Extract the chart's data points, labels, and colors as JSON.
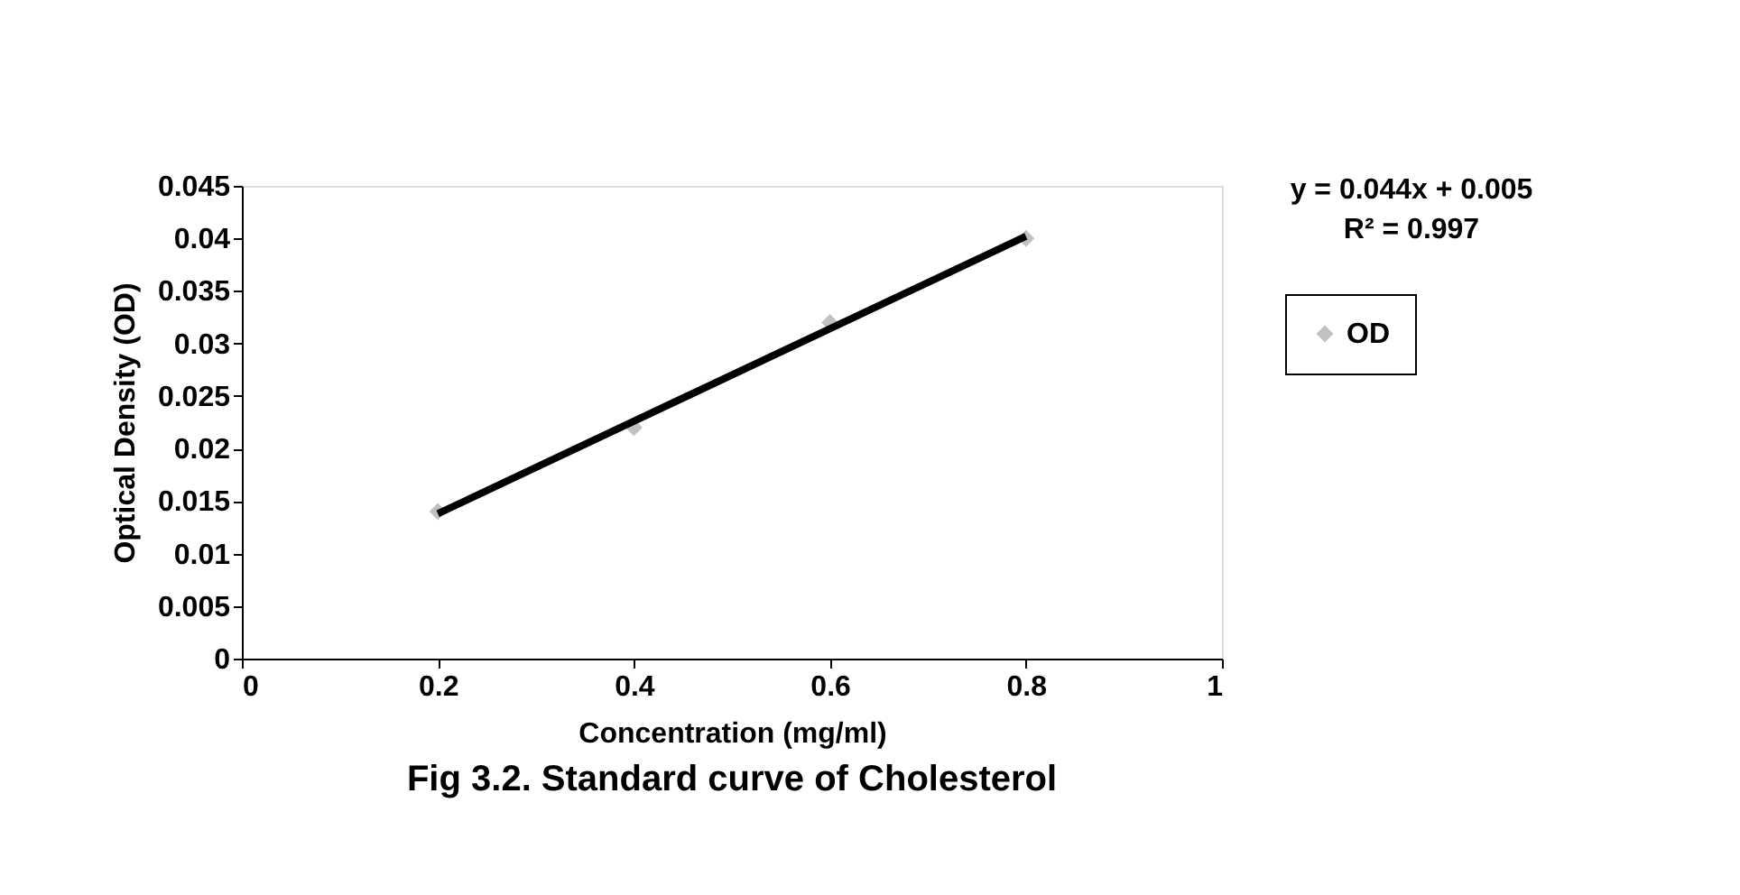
{
  "chart_data": {
    "type": "scatter",
    "title": "Fig 3.2. Standard curve of Cholesterol",
    "xlabel": "Concentration (mg/ml)",
    "ylabel": "Optical Density (OD)",
    "x": [
      0.2,
      0.4,
      0.6,
      0.8
    ],
    "series": [
      {
        "name": "OD",
        "color": "#a6a6a6",
        "values": [
          0.014,
          0.022,
          0.032,
          0.04
        ],
        "marker": "diamond"
      },
      {
        "type": "line",
        "color": "#000000",
        "x": [
          0.2,
          0.8
        ],
        "values": [
          0.0138,
          0.0402
        ],
        "marker": "none",
        "line_style": "solid"
      }
    ],
    "xlim": [
      0,
      1
    ],
    "xticks": [
      0,
      0.2,
      0.4,
      0.6,
      0.8,
      1
    ],
    "ylim": [
      0,
      0.045
    ],
    "yticks": [
      0,
      0.005,
      0.01,
      0.015,
      0.02,
      0.025,
      0.03,
      0.035,
      0.04,
      0.045
    ],
    "annotations": [
      "y = 0.044x + 0.005",
      "R² = 0.997"
    ],
    "grid": false,
    "legend": "right"
  }
}
